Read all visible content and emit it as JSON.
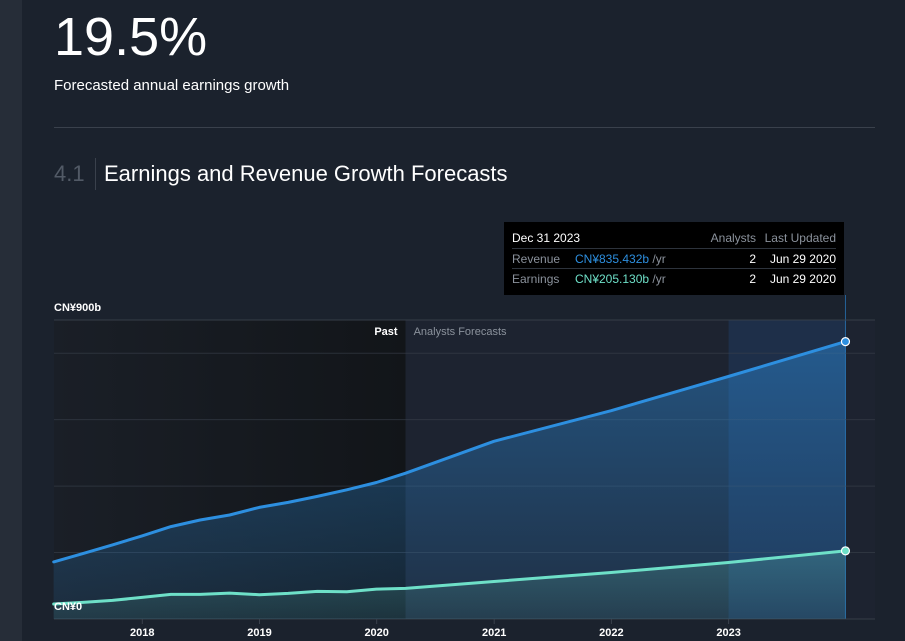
{
  "header": {
    "big_value": "19.5%",
    "caption": "Forecasted annual earnings growth"
  },
  "section": {
    "number": "4.1",
    "title": "Earnings and Revenue Growth Forecasts"
  },
  "tooltip": {
    "date": "Dec 31 2023",
    "col_analysts": "Analysts",
    "col_updated": "Last Updated",
    "rows": [
      {
        "label": "Revenue",
        "value": "CN¥835.432b",
        "unit": "/yr",
        "analysts": "2",
        "updated": "Jun 29 2020"
      },
      {
        "label": "Earnings",
        "value": "CN¥205.130b",
        "unit": "/yr",
        "analysts": "2",
        "updated": "Jun 29 2020"
      }
    ]
  },
  "colors": {
    "background": "#1b222d",
    "revenue": "#2d8fe0",
    "earnings": "#6ee0c8",
    "past_region": "#15191f",
    "forecast_region": "#1d2330"
  },
  "chart_data": {
    "type": "area",
    "y_tick_labels": [
      "CN¥900b",
      "CN¥0"
    ],
    "ylim": [
      0,
      900
    ],
    "x_tick_labels": [
      "2018",
      "2019",
      "2020",
      "2021",
      "2022",
      "2023"
    ],
    "xlim": [
      "2017-04",
      "2024-04"
    ],
    "grid": true,
    "region_labels": {
      "past": "Past",
      "forecast": "Analysts Forecasts"
    },
    "past_end": "2020-03-31",
    "highlight": "2023-12-31",
    "series": [
      {
        "name": "Revenue",
        "x": [
          "2017-03-31",
          "2017-06-30",
          "2017-09-30",
          "2017-12-31",
          "2018-03-31",
          "2018-06-30",
          "2018-09-30",
          "2018-12-31",
          "2019-03-31",
          "2019-06-30",
          "2019-09-30",
          "2019-12-31",
          "2020-03-31",
          "2020-12-31",
          "2021-12-31",
          "2022-12-31",
          "2023-12-31"
        ],
        "values": [
          172,
          197,
          223,
          250,
          278,
          298,
          313,
          336,
          351,
          369,
          389,
          411,
          439,
          535,
          627,
          730,
          835
        ]
      },
      {
        "name": "Earnings",
        "x": [
          "2017-03-31",
          "2017-06-30",
          "2017-09-30",
          "2017-12-31",
          "2018-03-31",
          "2018-06-30",
          "2018-09-30",
          "2018-12-31",
          "2019-03-31",
          "2019-06-30",
          "2019-09-30",
          "2019-12-31",
          "2020-03-31",
          "2020-12-31",
          "2021-12-31",
          "2022-12-31",
          "2023-12-31"
        ],
        "values": [
          45,
          50,
          56,
          65,
          74,
          74,
          78,
          73,
          77,
          83,
          82,
          90,
          92,
          113,
          140,
          170,
          205
        ]
      }
    ]
  }
}
